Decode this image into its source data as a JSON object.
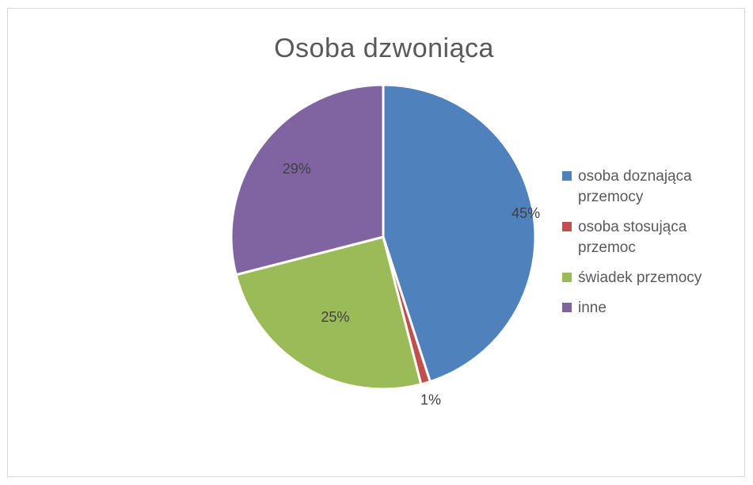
{
  "chart_data": {
    "type": "pie",
    "title": "Osoba dzwoniąca",
    "categories": [
      "osoba doznająca przemocy",
      "osoba stosująca przemoc",
      "świadek przemocy",
      "inne"
    ],
    "values": [
      45,
      1,
      25,
      29
    ],
    "labels": [
      "45%",
      "1%",
      "25%",
      "29%"
    ],
    "colors": [
      "#4f81bd",
      "#c0504d",
      "#9bbb59",
      "#8064a2"
    ],
    "legend_position": "right",
    "start_angle_deg": 0,
    "direction": "clockwise"
  }
}
